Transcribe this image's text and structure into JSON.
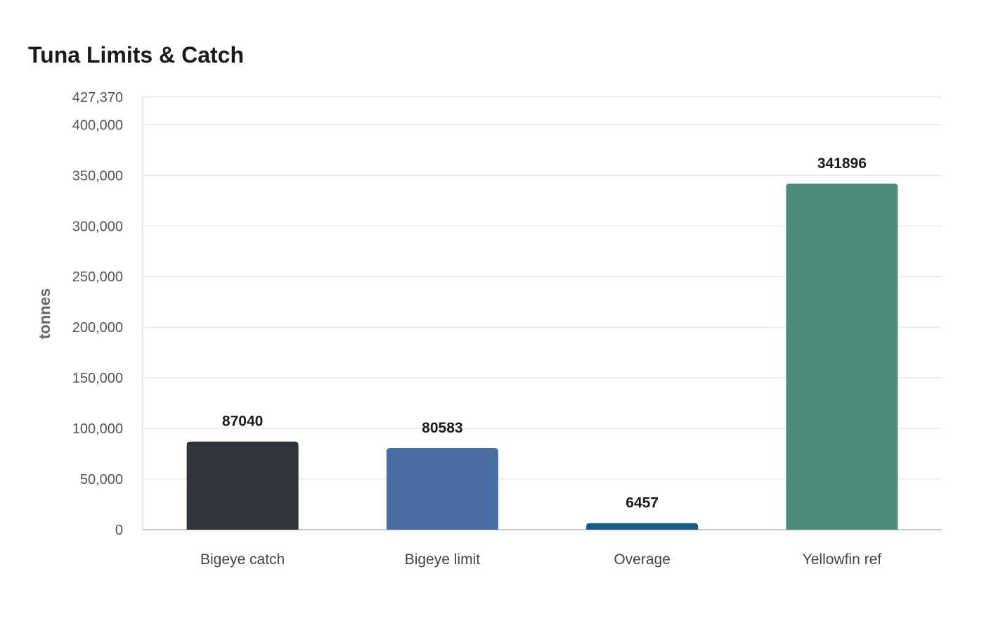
{
  "chart_data": {
    "type": "bar",
    "title": "Tuna Limits & Catch",
    "xlabel": "",
    "ylabel": "tonnes",
    "categories": [
      "Bigeye catch",
      "Bigeye limit",
      "Overage",
      "Yellowfin ref"
    ],
    "values": [
      87040,
      80583,
      6457,
      341896
    ],
    "value_labels": [
      "87040",
      "80583",
      "6457",
      "341896"
    ],
    "colors": [
      "#2d3538",
      "#4a6ea3",
      "#1a5a87",
      "#4e8c7a"
    ],
    "ylim": [
      0,
      427370
    ],
    "yticks": [
      0,
      50000,
      100000,
      150000,
      200000,
      250000,
      300000,
      350000,
      400000,
      427370
    ],
    "ytick_labels": [
      "0",
      "50,000",
      "100,000",
      "150,000",
      "200,000",
      "250,000",
      "300,000",
      "350,000",
      "400,000",
      "427,370"
    ],
    "grid": true,
    "legend": "none"
  }
}
